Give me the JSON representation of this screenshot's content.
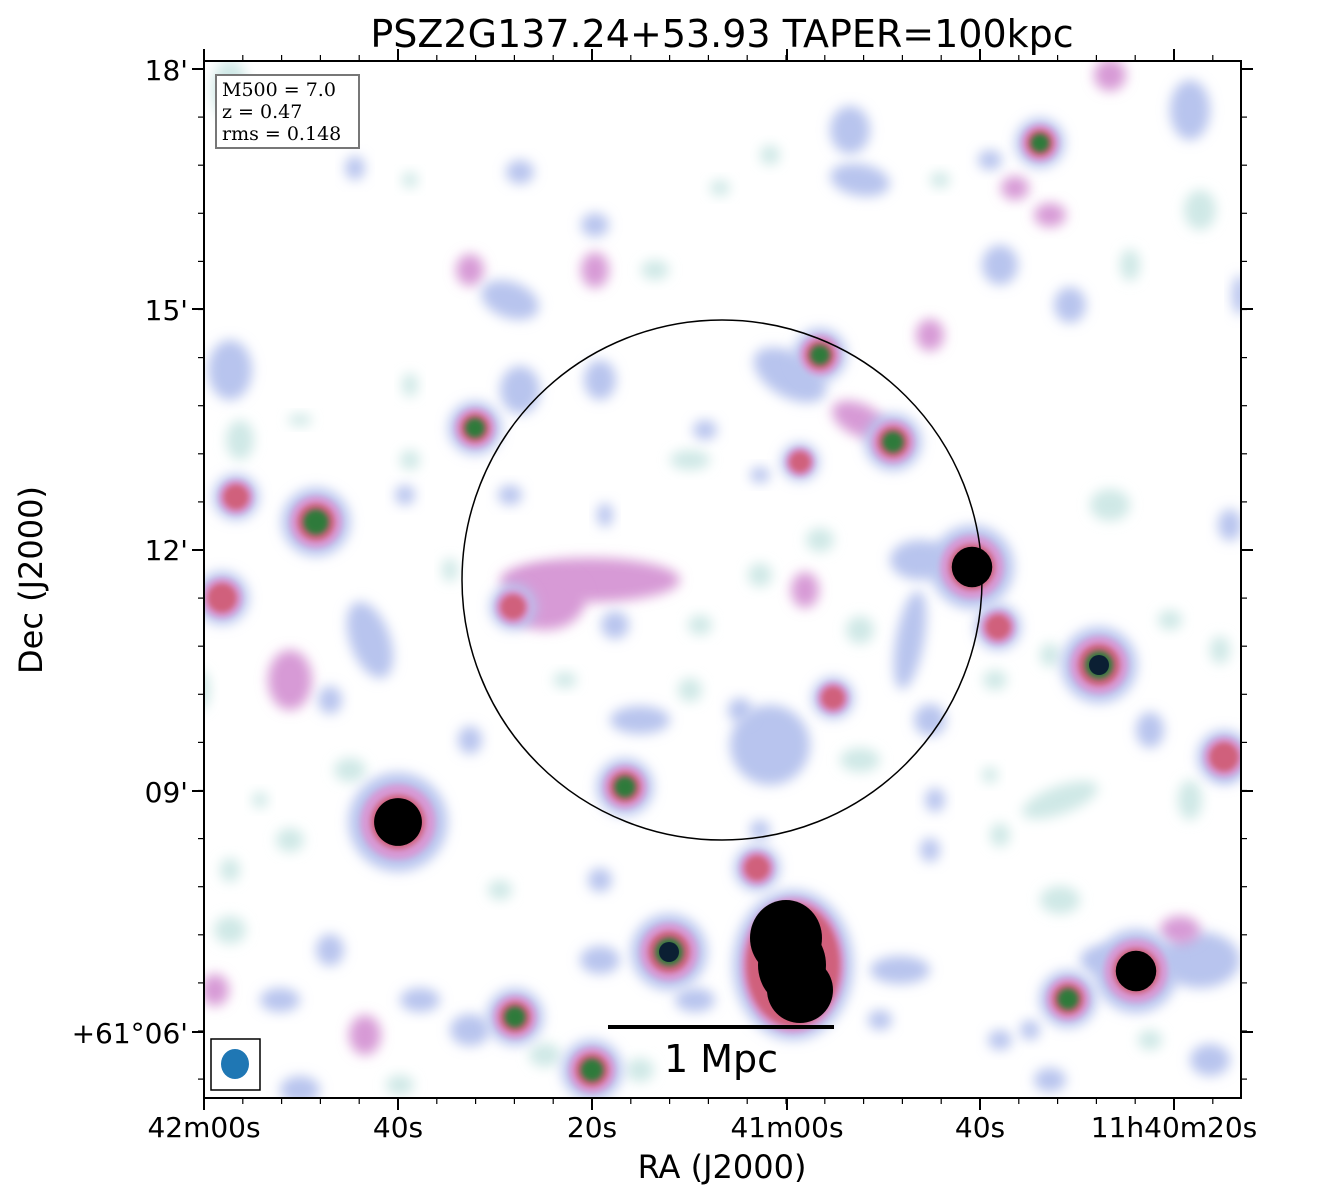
{
  "title": "PSZ2G137.24+53.93 TAPER=100kpc",
  "xlabel": "RA (J2000)",
  "ylabel": "Dec (J2000)",
  "x_ticks": [
    "42m00s",
    "40s",
    "20s",
    "41m00s",
    "40s",
    "11h40m20s"
  ],
  "y_ticks": [
    "18'",
    "15'",
    "12'",
    "09'",
    "+61°06'"
  ],
  "info_box": {
    "mass": "M500 = 7.0",
    "redshift": "z = 0.47",
    "rms": "rms = 0.148"
  },
  "scale_bar_label": "1 Mpc",
  "beam_color": "#1f77b4",
  "colormap": [
    "#ffffff",
    "#cfe8e6",
    "#b8c4ee",
    "#d79ad6",
    "#d0607c",
    "#2d7a3a",
    "#0b1f33",
    "#000000"
  ]
}
